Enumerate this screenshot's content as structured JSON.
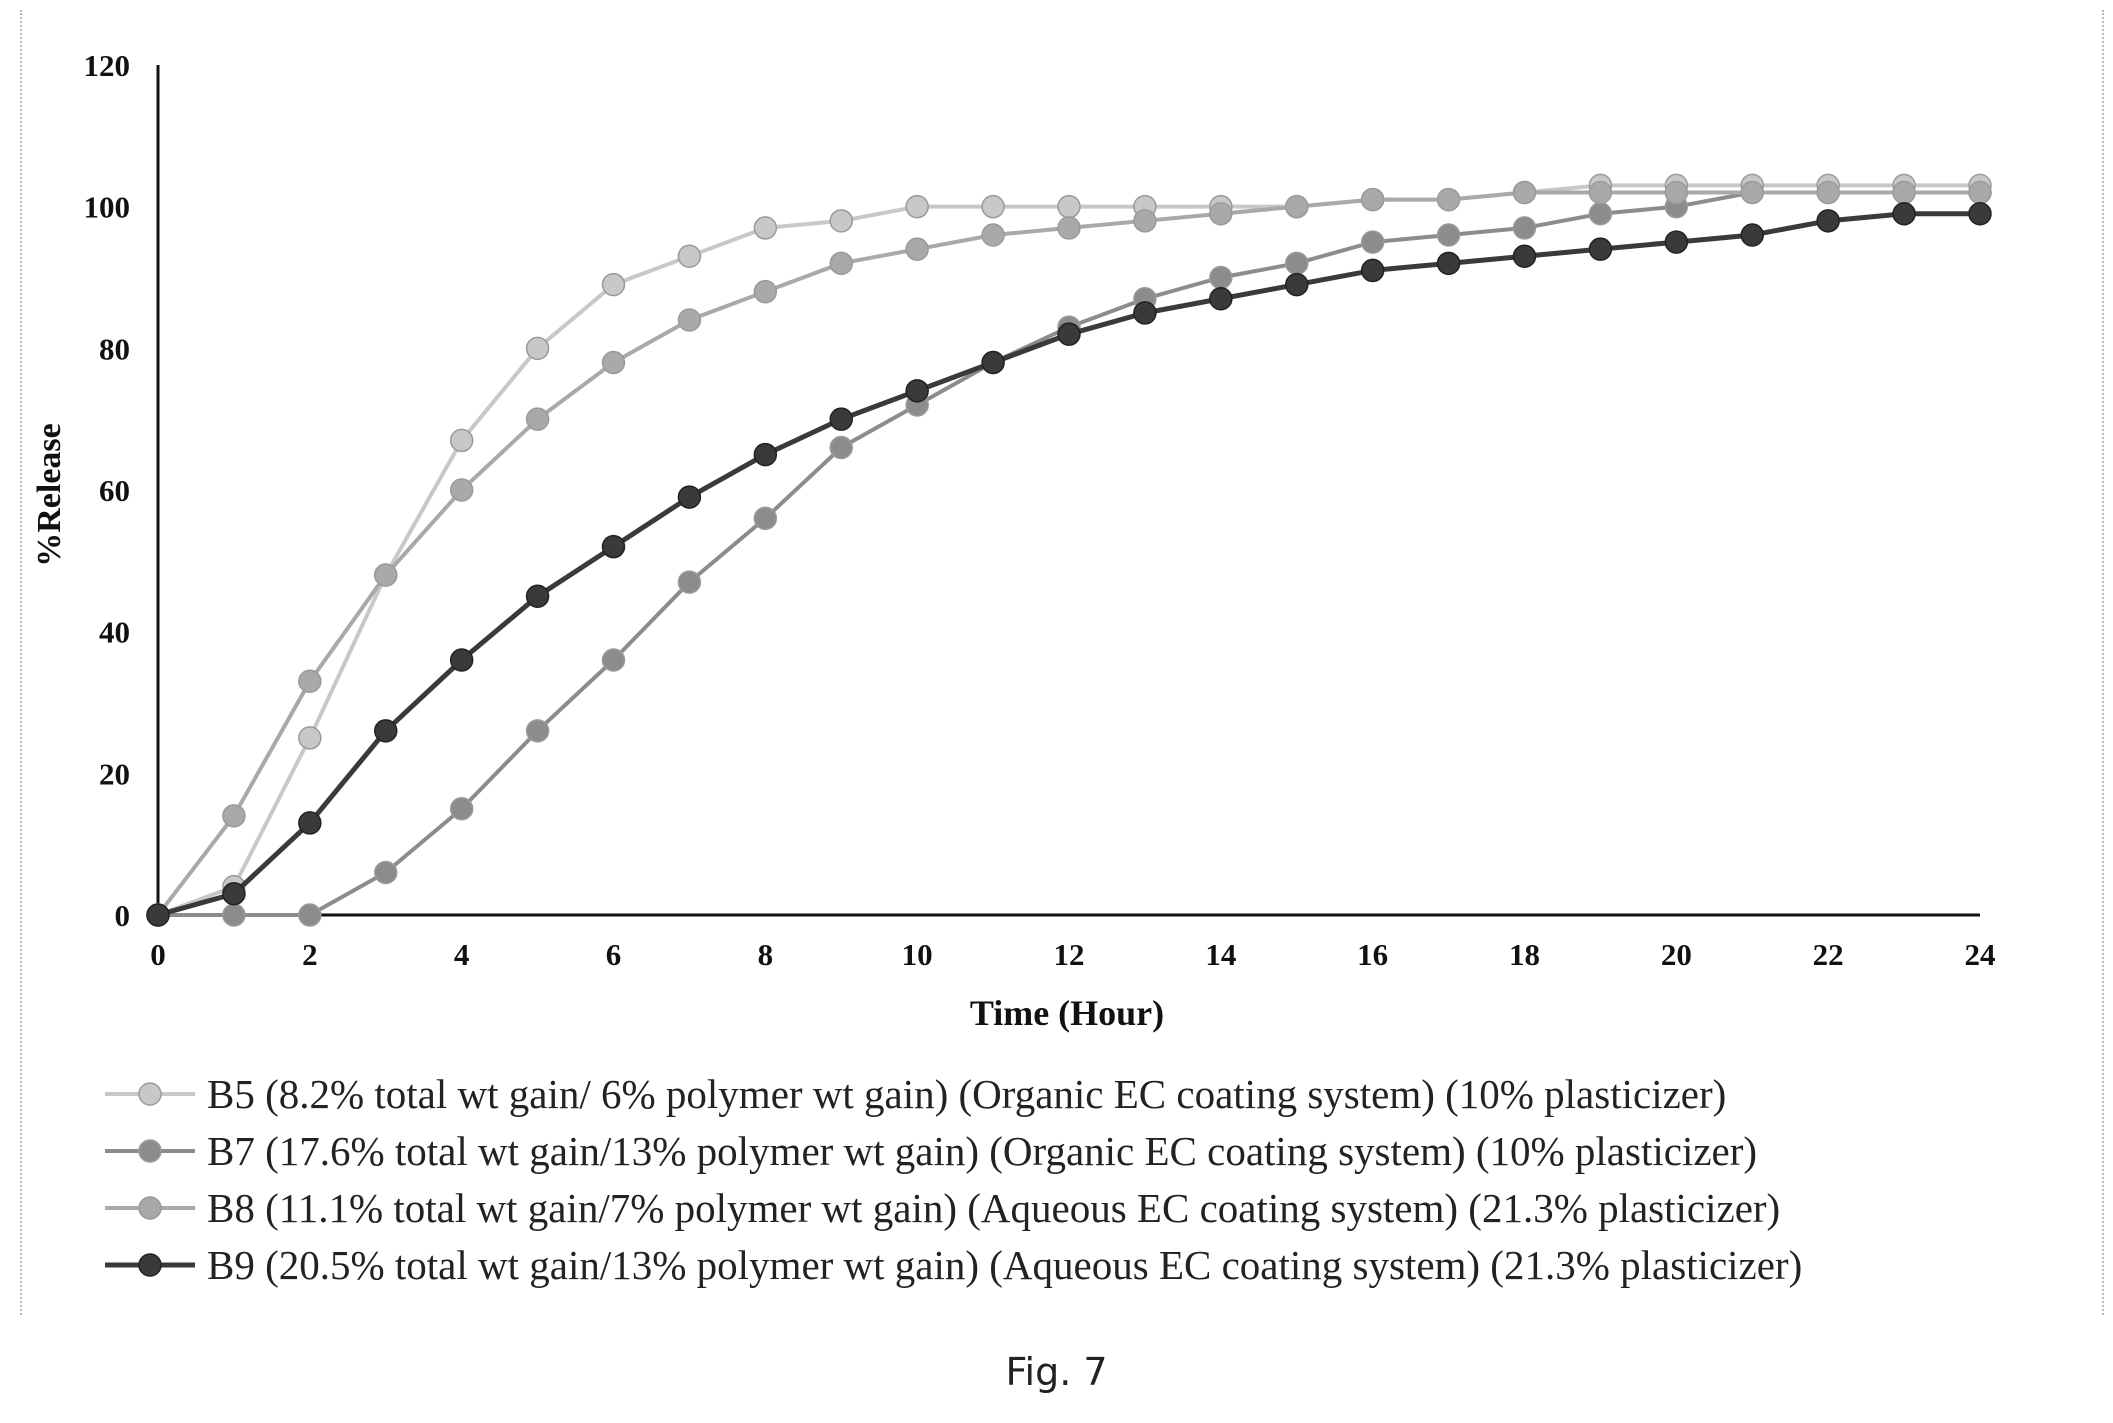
{
  "caption": "Fig. 7",
  "chart_data": {
    "type": "line",
    "xlabel": "Time (Hour)",
    "ylabel": "%Release",
    "xlim": [
      0,
      24
    ],
    "ylim": [
      0,
      120
    ],
    "xticks": [
      0,
      2,
      4,
      6,
      8,
      10,
      12,
      14,
      16,
      18,
      20,
      22,
      24
    ],
    "yticks": [
      0,
      20,
      40,
      60,
      80,
      100,
      120
    ],
    "grid": false,
    "legend_position": "bottom",
    "x": [
      0,
      1,
      2,
      3,
      4,
      5,
      6,
      7,
      8,
      9,
      10,
      11,
      12,
      13,
      14,
      15,
      16,
      17,
      18,
      19,
      20,
      21,
      22,
      23,
      24
    ],
    "series": [
      {
        "name": "B5 (8.2% total wt gain/ 6% polymer wt gain) (Organic EC coating system) (10% plasticizer)",
        "color": "#c8c8c8",
        "values": [
          0,
          4,
          25,
          48,
          67,
          80,
          89,
          93,
          97,
          98,
          100,
          100,
          100,
          100,
          100,
          100,
          101,
          101,
          102,
          103,
          103,
          103,
          103,
          103,
          103
        ]
      },
      {
        "name": "B7 (17.6% total wt gain/13% polymer wt gain) (Organic EC coating system) (10% plasticizer)",
        "color": "#8c8c8c",
        "values": [
          0,
          0,
          0,
          6,
          15,
          26,
          36,
          47,
          56,
          66,
          72,
          78,
          83,
          87,
          90,
          92,
          95,
          96,
          97,
          99,
          100,
          102,
          102,
          102,
          102
        ]
      },
      {
        "name": "B8 (11.1% total wt gain/7% polymer wt gain) (Aqueous EC coating system) (21.3% plasticizer)",
        "color": "#a9a9a9",
        "values": [
          0,
          14,
          33,
          48,
          60,
          70,
          78,
          84,
          88,
          92,
          94,
          96,
          97,
          98,
          99,
          100,
          101,
          101,
          102,
          102,
          102,
          102,
          102,
          102,
          102
        ]
      },
      {
        "name": "B9 (20.5% total wt gain/13% polymer wt gain) (Aqueous EC coating system) (21.3% plasticizer)",
        "color": "#3a3a3a",
        "values": [
          0,
          3,
          13,
          26,
          36,
          45,
          52,
          59,
          65,
          70,
          74,
          78,
          82,
          85,
          87,
          89,
          91,
          92,
          93,
          94,
          95,
          96,
          98,
          99,
          99
        ]
      }
    ]
  }
}
